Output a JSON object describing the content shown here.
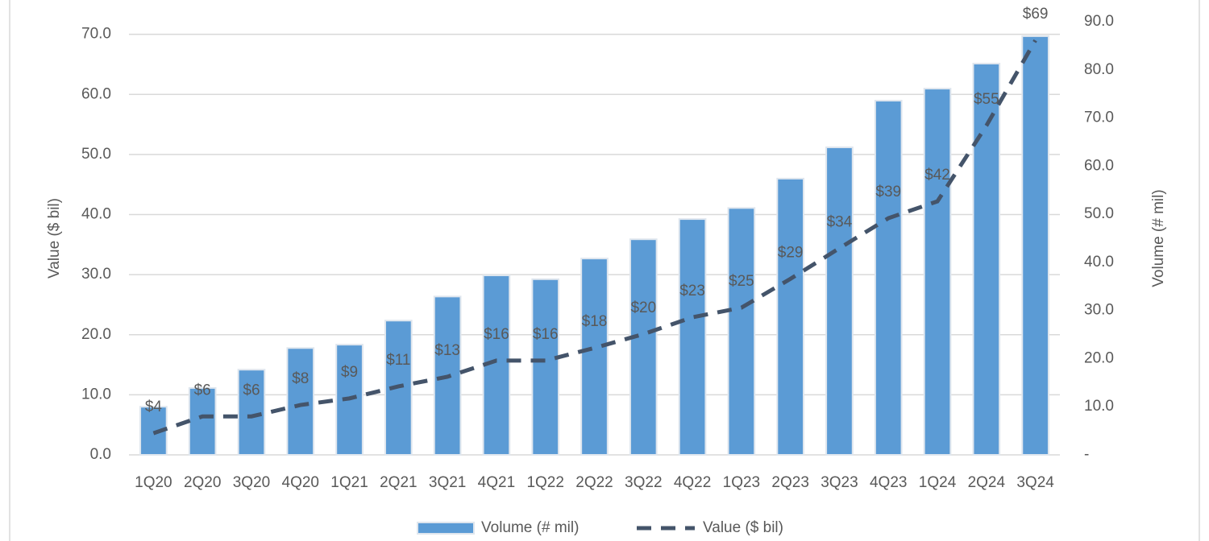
{
  "chart_data": {
    "type": "bar_line",
    "categories": [
      "1Q20",
      "2Q20",
      "3Q20",
      "4Q20",
      "1Q21",
      "2Q21",
      "3Q21",
      "4Q21",
      "1Q22",
      "2Q22",
      "3Q22",
      "4Q22",
      "1Q23",
      "2Q23",
      "3Q23",
      "4Q23",
      "1Q24",
      "2Q24",
      "3Q24"
    ],
    "series": [
      {
        "name": "Volume (# mil)",
        "type": "bar",
        "axis": "y2",
        "color": "#5b9bd5",
        "values": [
          10.0,
          13.9,
          17.7,
          22.2,
          22.9,
          27.9,
          32.9,
          37.3,
          36.5,
          40.8,
          44.8,
          49.0,
          51.3,
          57.4,
          63.9,
          73.6,
          76.1,
          81.3,
          87.0
        ]
      },
      {
        "name": "Value ($ bil)",
        "type": "line",
        "axis": "y",
        "color": "#44546a",
        "dashed": true,
        "values": [
          3.6,
          6.4,
          6.4,
          8.3,
          9.4,
          11.4,
          13.0,
          15.7,
          15.7,
          17.8,
          20.1,
          22.9,
          24.5,
          29.3,
          34.4,
          39.4,
          42.2,
          54.8,
          69.0
        ],
        "value_labels": [
          "$4",
          "$6",
          "$6",
          "$8",
          "$9",
          "$11",
          "$13",
          "$16",
          "$16",
          "$18",
          "$20",
          "$23",
          "$25",
          "$29",
          "$34",
          "$39",
          "$42",
          "$55",
          "$69"
        ]
      }
    ],
    "ylabel": "Value ($ bil)",
    "y2label": "Volume (# mil)",
    "ylim": [
      0,
      72.1
    ],
    "yticks": [
      {
        "value": 0,
        "label": "0.0"
      },
      {
        "value": 10,
        "label": "10.0"
      },
      {
        "value": 20,
        "label": "20.0"
      },
      {
        "value": 30,
        "label": "30.0"
      },
      {
        "value": 40,
        "label": "40.0"
      },
      {
        "value": 50,
        "label": "50.0"
      },
      {
        "value": 60,
        "label": "60.0"
      },
      {
        "value": 70,
        "label": "70.0"
      }
    ],
    "y2lim": [
      0,
      90
    ],
    "y2ticks": [
      {
        "value": 0,
        "label": "-"
      },
      {
        "value": 10,
        "label": "10.0"
      },
      {
        "value": 20,
        "label": "20.0"
      },
      {
        "value": 30,
        "label": "30.0"
      },
      {
        "value": 40,
        "label": "40.0"
      },
      {
        "value": 50,
        "label": "50.0"
      },
      {
        "value": 60,
        "label": "60.0"
      },
      {
        "value": 70,
        "label": "70.0"
      },
      {
        "value": 80,
        "label": "80.0"
      },
      {
        "value": 90,
        "label": "90.0"
      }
    ],
    "grid": true,
    "legend": "bottom"
  }
}
